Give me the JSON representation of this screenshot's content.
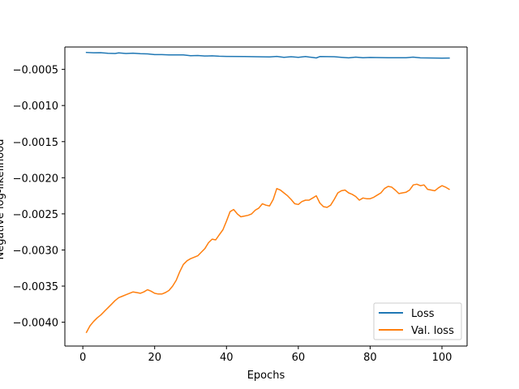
{
  "chart_data": {
    "type": "line",
    "title": "",
    "xlabel": "Epochs",
    "ylabel": "Negative log-likelihood",
    "xlim": [
      -5,
      107
    ],
    "ylim": [
      -0.00433,
      -0.00019
    ],
    "x_ticks": [
      0,
      20,
      40,
      60,
      80,
      100
    ],
    "x_tick_labels": [
      "0",
      "20",
      "40",
      "60",
      "80",
      "100"
    ],
    "y_ticks": [
      -0.0005,
      -0.001,
      -0.0015,
      -0.002,
      -0.0025,
      -0.003,
      -0.0035,
      -0.004
    ],
    "y_tick_labels": [
      "−0.0005",
      "−0.0010",
      "−0.0015",
      "−0.0020",
      "−0.0025",
      "−0.0030",
      "−0.0035",
      "−0.0040"
    ],
    "grid": false,
    "legend_position": "lower right",
    "series": [
      {
        "name": "Loss",
        "color": "#1f77b4",
        "points": [
          [
            1,
            -0.000265
          ],
          [
            3,
            -0.00027
          ],
          [
            5,
            -0.000268
          ],
          [
            7,
            -0.000278
          ],
          [
            9,
            -0.00028
          ],
          [
            10,
            -0.000272
          ],
          [
            12,
            -0.00028
          ],
          [
            14,
            -0.000275
          ],
          [
            16,
            -0.000282
          ],
          [
            18,
            -0.000285
          ],
          [
            20,
            -0.000295
          ],
          [
            22,
            -0.000295
          ],
          [
            24,
            -0.0003
          ],
          [
            26,
            -0.0003
          ],
          [
            28,
            -0.0003
          ],
          [
            30,
            -0.00031
          ],
          [
            32,
            -0.000308
          ],
          [
            34,
            -0.000315
          ],
          [
            36,
            -0.000312
          ],
          [
            38,
            -0.000318
          ],
          [
            40,
            -0.00032
          ],
          [
            45,
            -0.000322
          ],
          [
            50,
            -0.000326
          ],
          [
            52,
            -0.000328
          ],
          [
            54,
            -0.00032
          ],
          [
            56,
            -0.000332
          ],
          [
            58,
            -0.000325
          ],
          [
            60,
            -0.000332
          ],
          [
            62,
            -0.000322
          ],
          [
            64,
            -0.000335
          ],
          [
            65,
            -0.000342
          ],
          [
            66,
            -0.000322
          ],
          [
            70,
            -0.000325
          ],
          [
            72,
            -0.000332
          ],
          [
            74,
            -0.00034
          ],
          [
            76,
            -0.00033
          ],
          [
            78,
            -0.000338
          ],
          [
            80,
            -0.000335
          ],
          [
            85,
            -0.000338
          ],
          [
            90,
            -0.000338
          ],
          [
            92,
            -0.00033
          ],
          [
            94,
            -0.00034
          ],
          [
            98,
            -0.000343
          ],
          [
            100,
            -0.000345
          ],
          [
            102,
            -0.000343
          ]
        ]
      },
      {
        "name": "Val. loss",
        "color": "#ff7f0e",
        "points": [
          [
            1,
            -0.00414
          ],
          [
            2,
            -0.00405
          ],
          [
            3,
            -0.00399
          ],
          [
            4,
            -0.00394
          ],
          [
            5,
            -0.0039
          ],
          [
            6,
            -0.00385
          ],
          [
            7,
            -0.0038
          ],
          [
            8,
            -0.00375
          ],
          [
            9,
            -0.0037
          ],
          [
            10,
            -0.00366
          ],
          [
            11,
            -0.00364
          ],
          [
            12,
            -0.00362
          ],
          [
            13,
            -0.0036
          ],
          [
            14,
            -0.00358
          ],
          [
            15,
            -0.00359
          ],
          [
            16,
            -0.0036
          ],
          [
            17,
            -0.00358
          ],
          [
            18,
            -0.00355
          ],
          [
            19,
            -0.00357
          ],
          [
            20,
            -0.0036
          ],
          [
            21,
            -0.00361
          ],
          [
            22,
            -0.00361
          ],
          [
            23,
            -0.00359
          ],
          [
            24,
            -0.00356
          ],
          [
            25,
            -0.0035
          ],
          [
            26,
            -0.00342
          ],
          [
            27,
            -0.0033
          ],
          [
            28,
            -0.0032
          ],
          [
            29,
            -0.00315
          ],
          [
            30,
            -0.00312
          ],
          [
            31,
            -0.0031
          ],
          [
            32,
            -0.00308
          ],
          [
            33,
            -0.00303
          ],
          [
            34,
            -0.00298
          ],
          [
            35,
            -0.0029
          ],
          [
            36,
            -0.00285
          ],
          [
            37,
            -0.00286
          ],
          [
            38,
            -0.00279
          ],
          [
            39,
            -0.00272
          ],
          [
            40,
            -0.0026
          ],
          [
            41,
            -0.00247
          ],
          [
            42,
            -0.00244
          ],
          [
            43,
            -0.0025
          ],
          [
            44,
            -0.00254
          ],
          [
            45,
            -0.00253
          ],
          [
            46,
            -0.00252
          ],
          [
            47,
            -0.0025
          ],
          [
            48,
            -0.00245
          ],
          [
            49,
            -0.00242
          ],
          [
            50,
            -0.00236
          ],
          [
            51,
            -0.00238
          ],
          [
            52,
            -0.00239
          ],
          [
            53,
            -0.0023
          ],
          [
            54,
            -0.00215
          ],
          [
            55,
            -0.00217
          ],
          [
            56,
            -0.00221
          ],
          [
            57,
            -0.00225
          ],
          [
            58,
            -0.0023
          ],
          [
            59,
            -0.00236
          ],
          [
            60,
            -0.00237
          ],
          [
            61,
            -0.00233
          ],
          [
            62,
            -0.00231
          ],
          [
            63,
            -0.00231
          ],
          [
            64,
            -0.00228
          ],
          [
            65,
            -0.00225
          ],
          [
            66,
            -0.00235
          ],
          [
            67,
            -0.0024
          ],
          [
            68,
            -0.00241
          ],
          [
            69,
            -0.00238
          ],
          [
            70,
            -0.0023
          ],
          [
            71,
            -0.00221
          ],
          [
            72,
            -0.00218
          ],
          [
            73,
            -0.00217
          ],
          [
            74,
            -0.00221
          ],
          [
            75,
            -0.00223
          ],
          [
            76,
            -0.00226
          ],
          [
            77,
            -0.00231
          ],
          [
            78,
            -0.00228
          ],
          [
            79,
            -0.00229
          ],
          [
            80,
            -0.00229
          ],
          [
            81,
            -0.00227
          ],
          [
            82,
            -0.00224
          ],
          [
            83,
            -0.00221
          ],
          [
            84,
            -0.00215
          ],
          [
            85,
            -0.00212
          ],
          [
            86,
            -0.00213
          ],
          [
            87,
            -0.00217
          ],
          [
            88,
            -0.00222
          ],
          [
            89,
            -0.00221
          ],
          [
            90,
            -0.0022
          ],
          [
            91,
            -0.00217
          ],
          [
            92,
            -0.0021
          ],
          [
            93,
            -0.00209
          ],
          [
            94,
            -0.00211
          ],
          [
            95,
            -0.0021
          ],
          [
            96,
            -0.00216
          ],
          [
            97,
            -0.00217
          ],
          [
            98,
            -0.00218
          ],
          [
            99,
            -0.00214
          ],
          [
            100,
            -0.00211
          ],
          [
            101,
            -0.00213
          ],
          [
            102,
            -0.00216
          ]
        ]
      }
    ]
  }
}
